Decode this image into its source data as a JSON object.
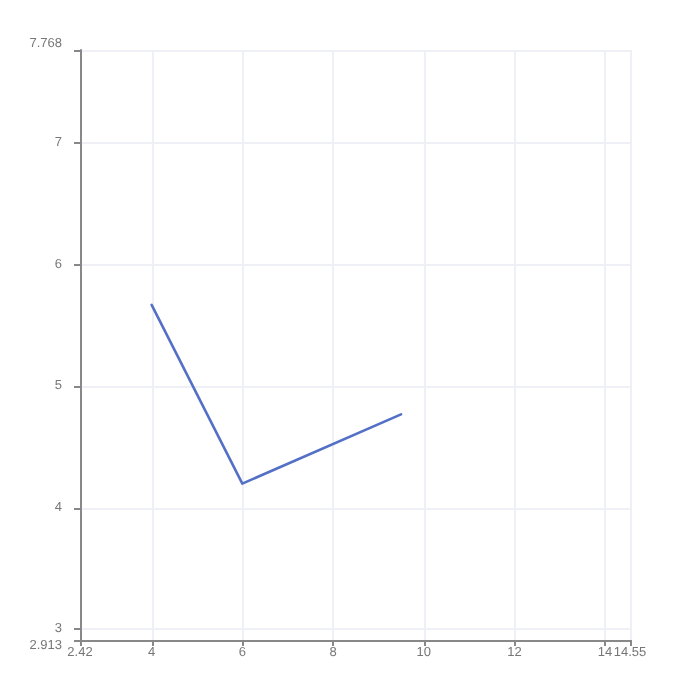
{
  "chart_data": {
    "type": "line",
    "x": [
      4,
      6,
      9.5
    ],
    "series": [
      {
        "color": "#5470c6",
        "values": [
          5.67,
          4.2,
          4.77
        ]
      }
    ],
    "xlim": [
      2.42,
      14.55
    ],
    "xticks": [
      2.42,
      4,
      6,
      8,
      10,
      12,
      14,
      14.55
    ],
    "ylim": [
      2.913,
      7.768
    ],
    "yticks": [
      2.913,
      3,
      4,
      5,
      6,
      7,
      7.768
    ],
    "grid": true,
    "marker": "none",
    "line_style": "solid"
  }
}
